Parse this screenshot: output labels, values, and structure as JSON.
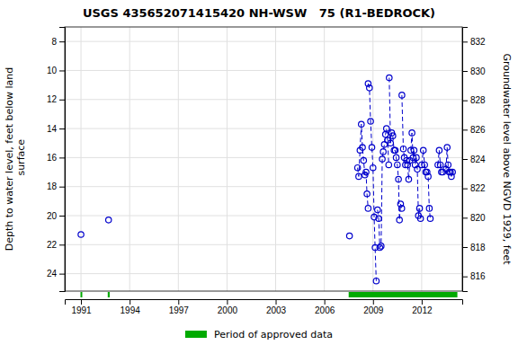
{
  "chart_data": {
    "type": "line",
    "title": "USGS 435652071415420 NH-WSW   75 (R1-BEDROCK)",
    "ylabel": "Depth to water level, feet below land\n surface",
    "y2label": "Groundwater level above NGVD 1929, feet",
    "xlim": [
      1990.0,
      2014.5
    ],
    "xticks": [
      1991,
      1994,
      1997,
      2000,
      2003,
      2006,
      2009,
      2012
    ],
    "ylim": [
      25.2,
      7.0
    ],
    "yticks": [
      8,
      10,
      12,
      14,
      16,
      18,
      20,
      22,
      24
    ],
    "y2lim": [
      815.0,
      833.0
    ],
    "y2ticks": [
      816,
      818,
      820,
      822,
      824,
      826,
      828,
      830,
      832
    ],
    "grid": true,
    "legend": "bottom",
    "series": [
      {
        "x": [
          1991.0
        ],
        "values": [
          21.3
        ],
        "color": "#0000cc",
        "line_style": "dashed",
        "marker": "circle"
      },
      {
        "x": [
          1992.7
        ],
        "values": [
          20.3
        ],
        "color": "#0000cc",
        "line_style": "dashed",
        "marker": "circle"
      },
      {
        "x": [
          2007.55
        ],
        "values": [
          21.4
        ],
        "color": "#0000cc",
        "line_style": "dashed",
        "marker": "circle"
      },
      {
        "x": [
          2008.05,
          2008.12,
          2008.2,
          2008.28,
          2008.35,
          2008.42,
          2008.5,
          2008.57,
          2008.63,
          2008.7
        ],
        "values": [
          16.7,
          17.3,
          15.5,
          13.7,
          15.3,
          16.2,
          17.2,
          17.0,
          18.5,
          19.5
        ],
        "color": "#0000cc",
        "line_style": "dashed",
        "marker": "circle"
      },
      {
        "x": [
          2008.7,
          2008.78,
          2008.85,
          2008.93,
          2009.0,
          2009.07,
          2009.13,
          2009.2
        ],
        "values": [
          10.9,
          11.2,
          13.5,
          15.3,
          16.7,
          20.1,
          22.2,
          24.5
        ],
        "color": "#0000cc",
        "line_style": "dashed",
        "marker": "circle"
      },
      {
        "x": [
          2009.28,
          2009.35,
          2009.42,
          2009.5,
          2009.57,
          2009.63,
          2009.7,
          2009.77,
          2009.83,
          2009.9,
          2009.97
        ],
        "values": [
          19.6,
          20.2,
          22.2,
          22.1,
          16.1,
          15.6,
          15.1,
          14.4,
          14.0,
          14.8,
          16.5
        ],
        "color": "#0000cc",
        "line_style": "dashed",
        "marker": "circle"
      },
      {
        "x": [
          2010.0,
          2010.08,
          2010.15,
          2010.22,
          2010.3,
          2010.37,
          2010.43,
          2010.5,
          2010.57,
          2010.63,
          2010.7,
          2010.77
        ],
        "values": [
          10.5,
          15.0,
          14.3,
          14.5,
          15.5,
          15.5,
          16.0,
          16.5,
          17.5,
          20.3,
          19.2,
          19.5
        ],
        "color": "#0000cc",
        "line_style": "dashed",
        "marker": "circle"
      },
      {
        "x": [
          2010.78,
          2010.87,
          2010.93,
          2011.0,
          2011.07,
          2011.13,
          2011.2,
          2011.27
        ],
        "values": [
          11.7,
          15.4,
          16.0,
          16.5,
          16.2,
          16.5,
          17.5,
          16.2
        ],
        "color": "#0000cc",
        "line_style": "dashed",
        "marker": "circle"
      },
      {
        "x": [
          2011.33,
          2011.4,
          2011.47,
          2011.53,
          2011.6,
          2011.67,
          2011.73,
          2011.8,
          2011.87,
          2011.93
        ],
        "values": [
          15.5,
          14.3,
          16.0,
          15.5,
          16.5,
          16.0,
          16.8,
          20.0,
          19.5,
          20.2
        ],
        "color": "#0000cc",
        "line_style": "dashed",
        "marker": "circle"
      },
      {
        "x": [
          2012.0,
          2012.1,
          2012.18,
          2012.25,
          2012.33,
          2012.4,
          2012.47,
          2012.53
        ],
        "values": [
          16.5,
          15.5,
          16.5,
          17.0,
          17.0,
          17.3,
          19.5,
          20.2
        ],
        "color": "#0000cc",
        "line_style": "dashed",
        "marker": "circle"
      },
      {
        "x": [
          2013.0,
          2013.08,
          2013.15,
          2013.22,
          2013.3
        ],
        "values": [
          16.5,
          15.5,
          16.5,
          17.0,
          17.0
        ],
        "color": "#0000cc",
        "line_style": "dashed",
        "marker": "circle"
      },
      {
        "x": [
          2013.5,
          2013.57,
          2013.63,
          2013.7,
          2013.77,
          2013.83,
          2013.9
        ],
        "values": [
          16.8,
          15.3,
          16.5,
          17.0,
          17.0,
          17.3,
          17.0
        ],
        "color": "#0000cc",
        "line_style": "dashed",
        "marker": "circle"
      }
    ],
    "approved_periods": {
      "name": "Period of approved data",
      "color": "#00aa00",
      "spans": [
        [
          1990.97,
          1991.08
        ],
        [
          1992.65,
          1992.77
        ],
        [
          2007.5,
          2014.2
        ]
      ]
    }
  }
}
